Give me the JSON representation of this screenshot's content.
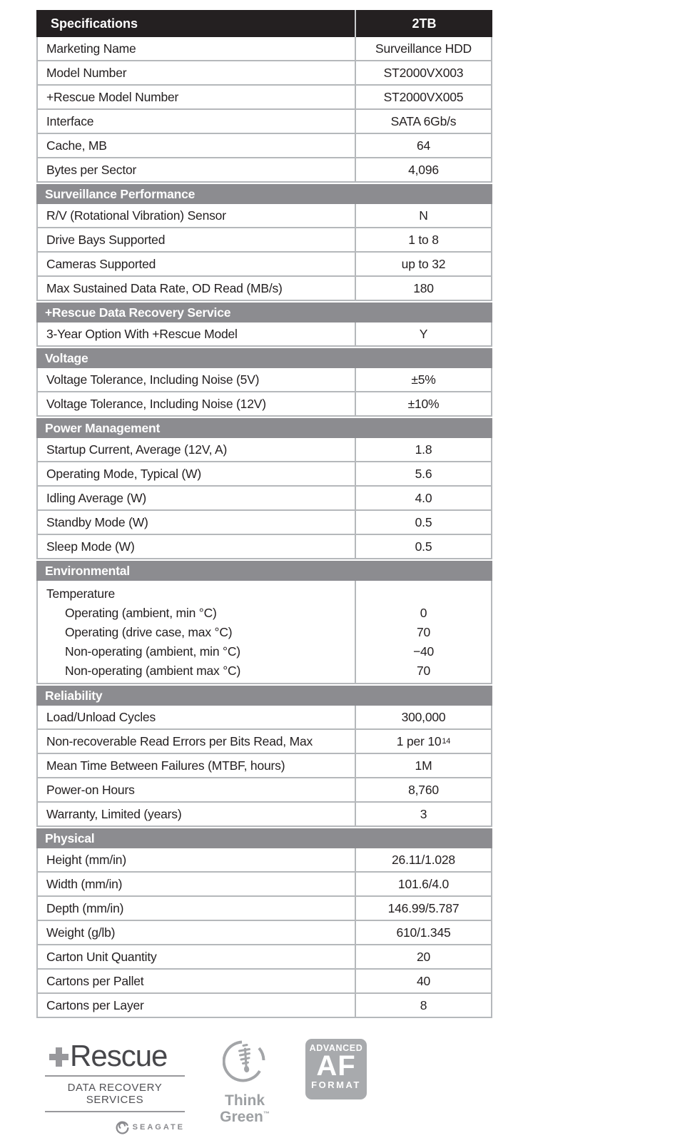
{
  "colors": {
    "header_bg": "#242021",
    "section_band_bg": "#8c8c90",
    "table_border": "#b5b8bb",
    "text": "#231f20",
    "logo_gray": "#98989c"
  },
  "table": {
    "header": {
      "col_label": "Specifications",
      "col_value": "2TB"
    },
    "sections": [
      {
        "title": null,
        "rows": [
          {
            "label": "Marketing Name",
            "value": "Surveillance HDD"
          },
          {
            "label": "Model Number",
            "value": "ST2000VX003"
          },
          {
            "label": "+Rescue Model Number",
            "value": "ST2000VX005"
          },
          {
            "label": "Interface",
            "value": "SATA 6Gb/s"
          },
          {
            "label": "Cache, MB",
            "value": "64"
          },
          {
            "label": "Bytes per Sector",
            "value": "4,096"
          }
        ]
      },
      {
        "title": "Surveillance Performance",
        "rows": [
          {
            "label": "R/V (Rotational Vibration) Sensor",
            "value": "N"
          },
          {
            "label": "Drive Bays Supported",
            "value": "1 to 8"
          },
          {
            "label": "Cameras Supported",
            "value": "up to 32"
          },
          {
            "label": "Max Sustained Data Rate, OD Read (MB/s)",
            "value": "180"
          }
        ]
      },
      {
        "title": "+Rescue Data Recovery Service",
        "rows": [
          {
            "label": "3-Year Option With +Rescue Model",
            "value": "Y"
          }
        ]
      },
      {
        "title": "Voltage",
        "rows": [
          {
            "label": "Voltage Tolerance, Including Noise (5V)",
            "value": "±5%"
          },
          {
            "label": "Voltage Tolerance, Including Noise (12V)",
            "value": "±10%"
          }
        ]
      },
      {
        "title": "Power Management",
        "rows": [
          {
            "label": "Startup Current, Average (12V, A)",
            "value": "1.8"
          },
          {
            "label": "Operating Mode, Typical (W)",
            "value": "5.6"
          },
          {
            "label": "Idling Average (W)",
            "value": "4.0"
          },
          {
            "label": "Standby Mode (W)",
            "value": "0.5"
          },
          {
            "label": "Sleep Mode (W)",
            "value": "0.5"
          }
        ]
      },
      {
        "title": "Environmental",
        "rows": [
          {
            "label": "Temperature",
            "subrows": [
              {
                "label": "Operating (ambient, min °C)",
                "value": "0"
              },
              {
                "label": "Operating (drive case, max °C)",
                "value": "70"
              },
              {
                "label": "Non-operating (ambient, min °C)",
                "value": "−40"
              },
              {
                "label": "Non-operating (ambient max °C)",
                "value": "70"
              }
            ]
          }
        ]
      },
      {
        "title": "Reliability",
        "rows": [
          {
            "label": "Load/Unload Cycles",
            "value": "300,000"
          },
          {
            "label": "Non-recoverable Read Errors per Bits Read, Max",
            "value": "1 per 10",
            "value_sup": "14"
          },
          {
            "label": "Mean Time Between Failures (MTBF, hours)",
            "value": "1M"
          },
          {
            "label": "Power-on Hours",
            "value": "8,760"
          },
          {
            "label": "Warranty, Limited (years)",
            "value": "3"
          }
        ]
      },
      {
        "title": "Physical",
        "rows": [
          {
            "label": "Height (mm/in)",
            "value": "26.11/1.028"
          },
          {
            "label": "Width (mm/in)",
            "value": "101.6/4.0"
          },
          {
            "label": "Depth (mm/in)",
            "value": "146.99/5.787"
          },
          {
            "label": "Weight (g/lb)",
            "value": "610/1.345"
          },
          {
            "label": "Carton Unit Quantity",
            "value": "20"
          },
          {
            "label": "Cartons per Pallet",
            "value": "40"
          },
          {
            "label": "Cartons per Layer",
            "value": "8"
          }
        ]
      }
    ]
  },
  "logos": {
    "rescue": {
      "name": "Rescue",
      "subtitle": "DATA RECOVERY SERVICES",
      "brand": "SEAGATE"
    },
    "think_green": {
      "line1": "Think",
      "line2": "Green",
      "tm": "™"
    },
    "af_badge": {
      "top": "ADVANCED",
      "letters": "AF",
      "bottom": "FORMAT"
    }
  }
}
